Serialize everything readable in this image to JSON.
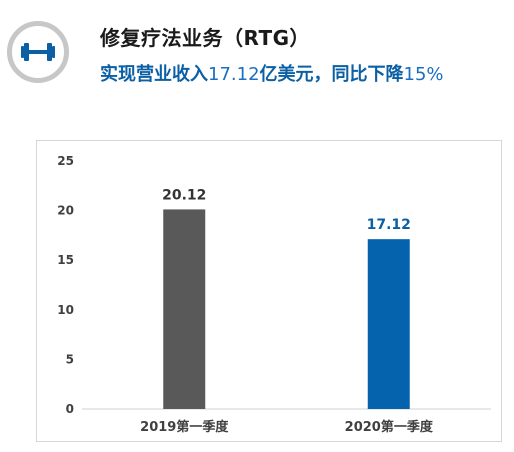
{
  "header": {
    "title": "修复疗法业务（RTG）",
    "subtitle_prefix": "实现营业收入",
    "subtitle_amount": "17.12",
    "subtitle_mid": "亿美元，同比下降",
    "subtitle_pct": "15%",
    "icon": "dumbbell-icon"
  },
  "colors": {
    "accent": "#0b5fa5",
    "bar_2019": "#595959",
    "bar_2020": "#0563ad",
    "badge_ring": "#c7c7c7"
  },
  "chart_data": {
    "type": "bar",
    "title": "",
    "xlabel": "",
    "ylabel": "",
    "categories": [
      "2019第一季度",
      "2020第一季度"
    ],
    "values": [
      20.12,
      17.12
    ],
    "value_labels": [
      "20.12",
      "17.12"
    ],
    "bar_colors": [
      "#595959",
      "#0563ad"
    ],
    "label_colors": [
      "#333333",
      "#0b5fa5"
    ],
    "ylim": [
      0,
      25
    ],
    "yticks": [
      0,
      5,
      10,
      15,
      20,
      25
    ],
    "grid": false,
    "legend": "none"
  }
}
